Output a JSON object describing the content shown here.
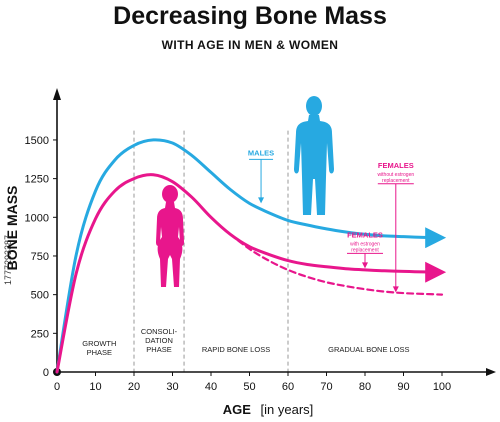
{
  "header": {
    "title": "Decreasing Bone Mass",
    "subtitle": "WITH AGE IN MEN & WOMEN"
  },
  "side_code": "1777293387",
  "chart_data": {
    "type": "line",
    "xlabel": "AGE",
    "xlabel_unit": "[in years]",
    "ylabel": "BONE MASS",
    "xlim": [
      0,
      110
    ],
    "ylim": [
      0,
      1750
    ],
    "x_ticks": [
      0,
      10,
      20,
      30,
      40,
      50,
      60,
      70,
      80,
      90,
      100
    ],
    "y_ticks": [
      0,
      250,
      500,
      750,
      1000,
      1250,
      1500
    ],
    "grid": false,
    "colors": {
      "males": "#27a9e1",
      "females": "#e8168c",
      "axis": "#111111",
      "divider": "#999999"
    },
    "series": [
      {
        "key": "males",
        "style": "solid",
        "x": [
          0,
          5,
          10,
          15,
          20,
          25,
          30,
          35,
          40,
          45,
          50,
          55,
          60,
          65,
          70,
          75,
          80,
          85,
          90,
          95,
          100
        ],
        "y": [
          0,
          760,
          1170,
          1370,
          1465,
          1500,
          1480,
          1400,
          1290,
          1180,
          1090,
          1030,
          980,
          950,
          925,
          905,
          890,
          880,
          875,
          870,
          868
        ]
      },
      {
        "key": "females",
        "style": "solid",
        "x": [
          0,
          5,
          10,
          15,
          20,
          25,
          30,
          35,
          40,
          45,
          50,
          55,
          60,
          65,
          70,
          75,
          80,
          85,
          90,
          95,
          100
        ],
        "y": [
          0,
          640,
          990,
          1170,
          1250,
          1275,
          1230,
          1130,
          1000,
          890,
          810,
          760,
          720,
          695,
          680,
          668,
          660,
          654,
          650,
          647,
          645
        ]
      },
      {
        "key": "females-without-estrogen",
        "style": "dashed",
        "x": [
          45,
          50,
          55,
          60,
          65,
          70,
          75,
          80,
          85,
          90,
          95,
          100
        ],
        "y": [
          890,
          795,
          720,
          660,
          615,
          580,
          555,
          535,
          520,
          510,
          505,
          500
        ]
      }
    ],
    "phase_dividers": [
      20,
      33,
      60
    ],
    "phases": [
      {
        "label": "GROWTH PHASE",
        "x": 11
      },
      {
        "label": "CONSOLI-DATION PHASE",
        "x": 26.5
      },
      {
        "label": "RAPID BONE LOSS",
        "x": 46.5
      },
      {
        "label": "GRADUAL BONE LOSS",
        "x": 81
      }
    ],
    "annotations": [
      {
        "label": "MALES",
        "x": 53,
        "y": 1400,
        "color": "males",
        "target_y": 1090
      },
      {
        "label": "FEMALES",
        "sublabel": "with estrogen replacement",
        "x": 80,
        "y": 870,
        "color": "females",
        "target_y": 670
      },
      {
        "label": "FEMALES",
        "sublabel": "without estrogen replacement",
        "x": 88,
        "y": 1320,
        "color": "females",
        "target_y": 515
      }
    ]
  }
}
